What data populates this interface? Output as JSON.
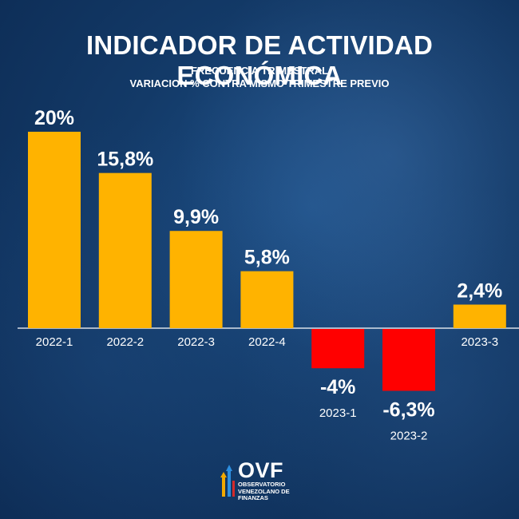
{
  "header": {
    "title": "INDICADOR DE ACTIVIDAD ECONÓMICA",
    "subtitle1": "FRECUENCIA TRIMESTRAL",
    "subtitle2": "VARIACION % CONTRA MISMO TRIMESTRE PREVIO"
  },
  "chart_data": {
    "type": "bar",
    "title": "INDICADOR DE ACTIVIDAD ECONÓMICA",
    "categories": [
      "2022-1",
      "2022-2",
      "2022-3",
      "2022-4",
      "2023-1",
      "2023-2",
      "2023-3"
    ],
    "values": [
      20,
      15.8,
      9.9,
      5.8,
      -4,
      -6.3,
      2.4
    ],
    "data_labels": [
      "20%",
      "15,8%",
      "9,9%",
      "5,8%",
      "-4%",
      "-6,3%",
      "2,4%"
    ],
    "xlabel": "",
    "ylabel": "",
    "positive_color": "#ffb300",
    "negative_color": "#ff0000",
    "ylim": [
      -8,
      20
    ],
    "grid": false
  },
  "logo": {
    "main": "OVF",
    "line1": "OBSERVATORIO",
    "line2": "VENEZOLANO DE",
    "line3": "FINANZAS"
  }
}
